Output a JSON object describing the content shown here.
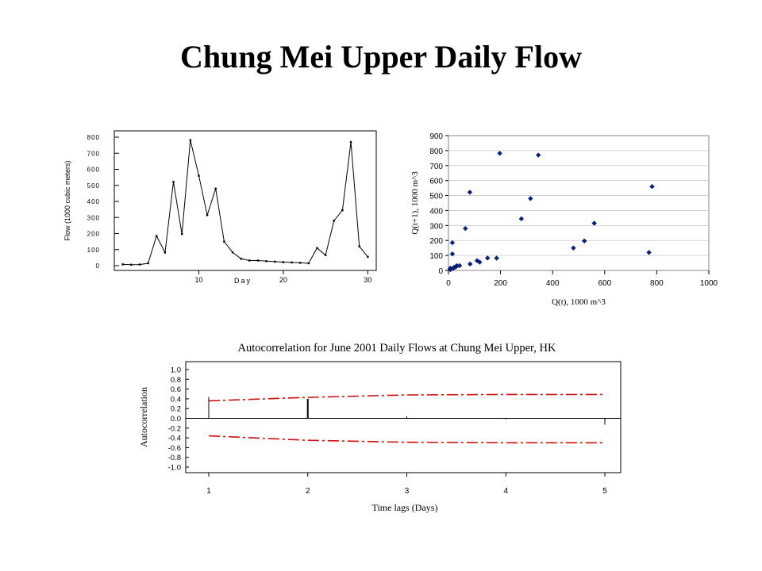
{
  "slide": {
    "title": "Chung Mei Upper Daily Flow"
  },
  "chart_data": [
    {
      "type": "line",
      "title": "",
      "xlabel": "Day",
      "ylabel": "Flow (1000 cubic meters)",
      "xlim": [
        0,
        31
      ],
      "ylim": [
        0,
        800
      ],
      "xticks": [
        10,
        20,
        30
      ],
      "yticks": [
        0,
        100,
        200,
        300,
        400,
        500,
        600,
        700,
        800
      ],
      "grid": false,
      "x": [
        1,
        2,
        3,
        4,
        5,
        6,
        7,
        8,
        9,
        10,
        11,
        12,
        13,
        14,
        15,
        16,
        17,
        18,
        19,
        20,
        21,
        22,
        23,
        24,
        25,
        26,
        27,
        28,
        29,
        30
      ],
      "values": [
        8,
        6,
        7,
        15,
        185,
        82,
        522,
        197,
        782,
        560,
        315,
        480,
        150,
        83,
        43,
        32,
        32,
        28,
        25,
        22,
        20,
        18,
        15,
        110,
        65,
        280,
        345,
        770,
        120,
        55
      ],
      "line_color": "#000000"
    },
    {
      "type": "scatter",
      "title": "",
      "xlabel": "Q(t), 1000 m^3",
      "ylabel": "Q(t+1), 1000 m^3",
      "xlim": [
        0,
        1000
      ],
      "ylim": [
        0,
        900
      ],
      "xticks": [
        0,
        200,
        400,
        600,
        800,
        1000
      ],
      "yticks": [
        0,
        100,
        200,
        300,
        400,
        500,
        600,
        700,
        800,
        900
      ],
      "grid": true,
      "marker_color": "#0a1f78",
      "points": [
        [
          8,
          6
        ],
        [
          6,
          7
        ],
        [
          7,
          15
        ],
        [
          15,
          185
        ],
        [
          185,
          82
        ],
        [
          82,
          522
        ],
        [
          522,
          197
        ],
        [
          197,
          782
        ],
        [
          782,
          560
        ],
        [
          560,
          315
        ],
        [
          315,
          480
        ],
        [
          480,
          150
        ],
        [
          150,
          83
        ],
        [
          83,
          43
        ],
        [
          43,
          32
        ],
        [
          32,
          32
        ],
        [
          32,
          28
        ],
        [
          28,
          25
        ],
        [
          25,
          22
        ],
        [
          22,
          20
        ],
        [
          20,
          18
        ],
        [
          18,
          15
        ],
        [
          15,
          110
        ],
        [
          110,
          65
        ],
        [
          65,
          280
        ],
        [
          280,
          345
        ],
        [
          345,
          770
        ],
        [
          770,
          120
        ],
        [
          120,
          55
        ]
      ]
    },
    {
      "type": "bar",
      "title": "Autocorrelation for June 2001 Daily Flows at Chung Mei Upper, HK",
      "xlabel": "Time lags (Days)",
      "ylabel": "Autocorrelation",
      "xlim": [
        1,
        5
      ],
      "ylim": [
        -1.0,
        1.0
      ],
      "xticks": [
        1,
        2,
        3,
        4,
        5
      ],
      "yticks": [
        "1.0",
        "0.8",
        "0.6",
        "0.4",
        "0.2",
        "0.0",
        "-0.2",
        "-0.4",
        "-0.6",
        "-0.8",
        "-1.0"
      ],
      "categories": [
        1,
        2,
        3,
        4,
        5
      ],
      "values": [
        0.44,
        0.4,
        0.04,
        -0.02,
        -0.13
      ],
      "confidence_upper": [
        [
          1,
          0.36
        ],
        [
          2,
          0.43
        ],
        [
          3,
          0.48
        ],
        [
          4,
          0.49
        ],
        [
          5,
          0.49
        ]
      ],
      "confidence_lower": [
        [
          1,
          -0.36
        ],
        [
          2,
          -0.45
        ],
        [
          3,
          -0.49
        ],
        [
          4,
          -0.5
        ],
        [
          5,
          -0.5
        ]
      ],
      "bar_color": "#000000",
      "confidence_color": "#d01010"
    }
  ]
}
